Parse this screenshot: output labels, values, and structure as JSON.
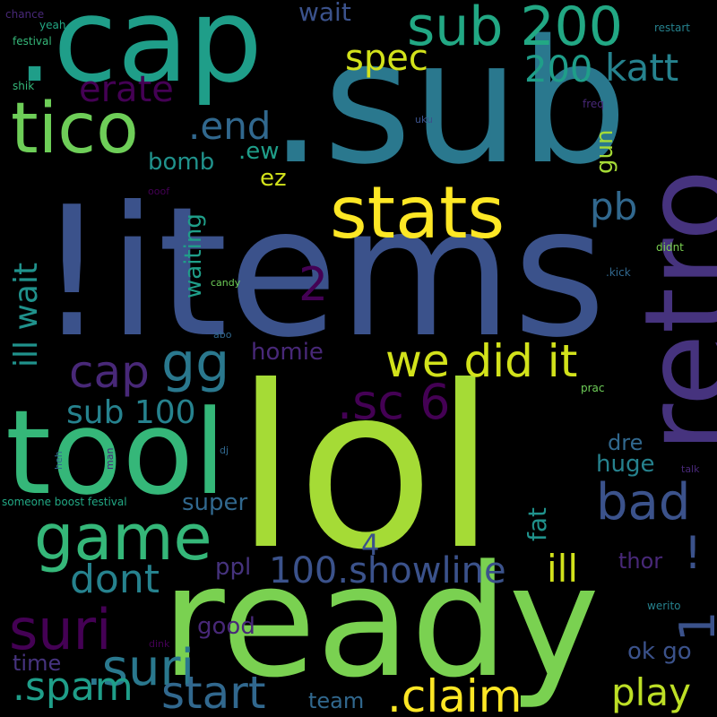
{
  "words": [
    {
      "text": "lol",
      "color": "#a5db36"
    },
    {
      "text": "ready",
      "color": "#7ad151"
    },
    {
      "text": ".sub",
      "color": "#2a788e"
    },
    {
      "text": "!items",
      "color": "#3b528b"
    },
    {
      "text": ".cap",
      "color": "#1f9e89"
    },
    {
      "text": "retro",
      "color": "#46337e"
    },
    {
      "text": "tool",
      "color": "#35b779"
    },
    {
      "text": "game",
      "color": "#35b779"
    },
    {
      "text": "stats",
      "color": "#fde725"
    },
    {
      "text": "tico",
      "color": "#6ece58"
    },
    {
      "text": ".suri",
      "color": "#2a788e"
    },
    {
      "text": "sub 200",
      "color": "#22a884"
    },
    {
      "text": "suri",
      "color": "#440154"
    },
    {
      "text": "gg",
      "color": "#2a788e"
    },
    {
      "text": ".spam",
      "color": "#1f9e89"
    },
    {
      "text": "start",
      "color": "#31688e"
    },
    {
      "text": ".claim",
      "color": "#fde725"
    },
    {
      "text": "play",
      "color": "#bddf26"
    },
    {
      "text": "we did it",
      "color": "#d2e21b"
    },
    {
      "text": ".sc 6",
      "color": "#440154"
    },
    {
      "text": "bad",
      "color": "#3b528b"
    },
    {
      "text": "cap",
      "color": "#482878"
    },
    {
      "text": "dont",
      "color": "#26828e"
    },
    {
      "text": "spec",
      "color": "#d2e21b"
    },
    {
      "text": "katt",
      "color": "#26828e"
    },
    {
      "text": "200",
      "color": "#1f9e89"
    },
    {
      "text": "erate",
      "color": "#440154"
    },
    {
      "text": ".end",
      "color": "#31688e"
    },
    {
      "text": "pb",
      "color": "#31688e"
    },
    {
      "text": "ill",
      "color": "#d2e21b"
    },
    {
      "text": "100.showline",
      "color": "#3b528b"
    },
    {
      "text": "sub 100",
      "color": "#26828e"
    },
    {
      "text": "ill wait",
      "color": "#20928c"
    },
    {
      "text": "1",
      "color": "#3b528b"
    },
    {
      "text": "!",
      "color": "#3b528b"
    },
    {
      "text": "2",
      "color": "#440154"
    },
    {
      "text": "4",
      "color": "#3b528b"
    },
    {
      "text": "wait",
      "color": "#3b528b"
    },
    {
      "text": "bomb",
      "color": "#20928c"
    },
    {
      "text": ".ew",
      "color": "#1f9e89"
    },
    {
      "text": "ez",
      "color": "#d2e21b"
    },
    {
      "text": "homie",
      "color": "#482878"
    },
    {
      "text": "waiting",
      "color": "#1f9e89"
    },
    {
      "text": "gun",
      "color": "#a5db36"
    },
    {
      "text": "huge",
      "color": "#26828e"
    },
    {
      "text": "dre",
      "color": "#31688e"
    },
    {
      "text": "fat",
      "color": "#20928c"
    },
    {
      "text": "super",
      "color": "#31688e"
    },
    {
      "text": "thor",
      "color": "#482878"
    },
    {
      "text": "ppl",
      "color": "#46337e"
    },
    {
      "text": "good",
      "color": "#482878"
    },
    {
      "text": "ok go",
      "color": "#3b528b"
    },
    {
      "text": "time",
      "color": "#46337e"
    },
    {
      "text": "team",
      "color": "#31688e"
    },
    {
      "text": "chance",
      "color": "#482878"
    },
    {
      "text": "yeah",
      "color": "#22a884"
    },
    {
      "text": "festival",
      "color": "#35b779"
    },
    {
      "text": "shik",
      "color": "#35b779"
    },
    {
      "text": "restart",
      "color": "#26828e"
    },
    {
      "text": "freq",
      "color": "#482878"
    },
    {
      "text": "uku",
      "color": "#3b528b"
    },
    {
      "text": "ooof",
      "color": "#440154"
    },
    {
      "text": "candy",
      "color": "#6ece58"
    },
    {
      "text": "didnt",
      "color": "#7ad151"
    },
    {
      "text": ".kick",
      "color": "#31688e"
    },
    {
      "text": "abo",
      "color": "#31688e"
    },
    {
      "text": "prac",
      "color": "#6ece58"
    },
    {
      "text": "talk",
      "color": "#482878"
    },
    {
      "text": "heh",
      "color": "#31688e"
    },
    {
      "text": "man",
      "color": "#482878"
    },
    {
      "text": "dj",
      "color": "#31688e"
    },
    {
      "text": "someone boost festival",
      "color": "#22a884"
    },
    {
      "text": "werito",
      "color": "#26828e"
    },
    {
      "text": "dink",
      "color": "#440154"
    }
  ]
}
